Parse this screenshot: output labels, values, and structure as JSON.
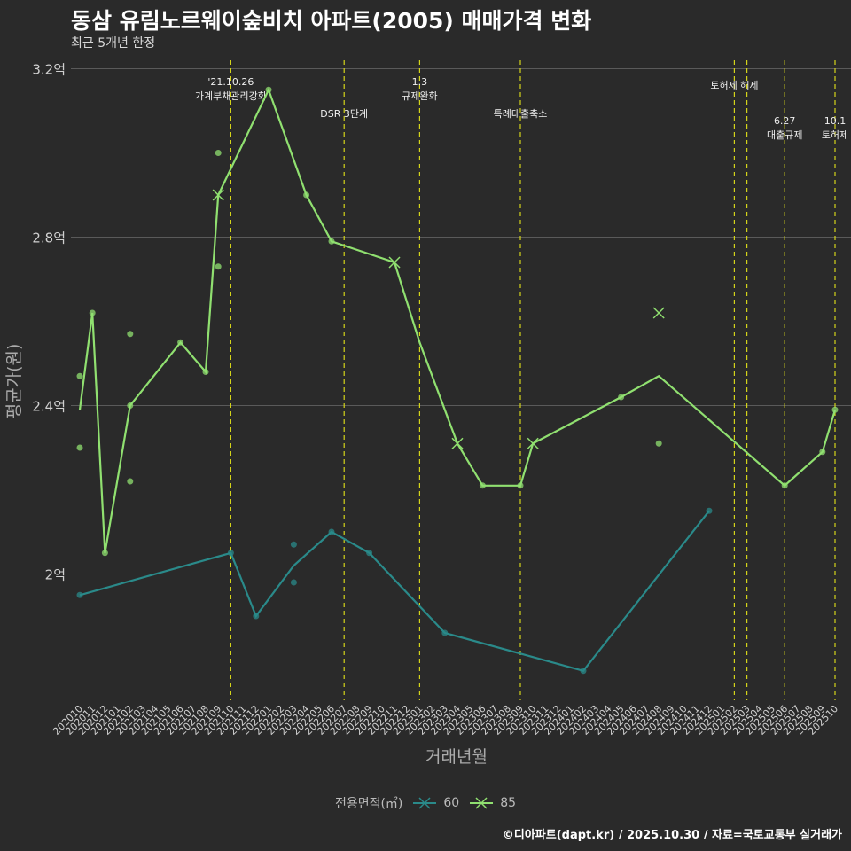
{
  "header": {
    "title": "동삼 유림노르웨이숲비치 아파트(2005) 매매가격 변화",
    "subtitle": "최근 5개년 한정"
  },
  "caption": "©디아파트(dapt.kr) / 2025.10.30 / 자료=국토교통부 실거래가",
  "legend": {
    "title": "전용면적(㎡)",
    "items": [
      {
        "label": "60",
        "color": "#2a8a8a"
      },
      {
        "label": "85",
        "color": "#90e070"
      }
    ]
  },
  "colors": {
    "s60": "#2a8a8a",
    "s85": "#90e070",
    "event": "#d4d41a",
    "grid": "#5a5a5a"
  },
  "chart_data": {
    "type": "line",
    "title": "동삼 유림노르웨이숲비치 아파트(2005) 매매가격 변화",
    "xlabel": "거래년월",
    "ylabel": "평균가(원)",
    "ylim": [
      1.7,
      3.22
    ],
    "yticks": [
      {
        "v": 2.0,
        "label": "2억"
      },
      {
        "v": 2.4,
        "label": "2.4억"
      },
      {
        "v": 2.8,
        "label": "2.8억"
      },
      {
        "v": 3.2,
        "label": "3.2억"
      }
    ],
    "xticks": [
      "202010",
      "202011",
      "202012",
      "202101",
      "202102",
      "202103",
      "202104",
      "202105",
      "202106",
      "202107",
      "202108",
      "202109",
      "202110",
      "202111",
      "202112",
      "202201",
      "202202",
      "202203",
      "202204",
      "202205",
      "202206",
      "202207",
      "202208",
      "202209",
      "202210",
      "202211",
      "202212",
      "202301",
      "202302",
      "202303",
      "202304",
      "202305",
      "202306",
      "202307",
      "202308",
      "202309",
      "202310",
      "202311",
      "202312",
      "202401",
      "202402",
      "202403",
      "202404",
      "202405",
      "202406",
      "202407",
      "202408",
      "202409",
      "202410",
      "202411",
      "202412",
      "202501",
      "202502",
      "202503",
      "202504",
      "202505",
      "202506",
      "202507",
      "202508",
      "202509",
      "202510"
    ],
    "series": [
      {
        "name": "60",
        "line": [
          [
            0,
            1.95
          ],
          [
            12,
            2.05
          ],
          [
            14,
            1.9
          ],
          [
            17,
            2.02
          ],
          [
            20,
            2.1
          ],
          [
            23,
            2.05
          ],
          [
            29,
            1.86
          ],
          [
            40,
            1.77
          ],
          [
            50,
            2.15
          ]
        ],
        "points": [
          [
            0,
            1.95
          ],
          [
            12,
            2.05
          ],
          [
            14,
            1.9
          ],
          [
            17,
            2.07
          ],
          [
            17,
            1.98
          ],
          [
            20,
            2.1
          ],
          [
            23,
            2.05
          ],
          [
            29,
            1.86
          ],
          [
            40,
            1.77
          ],
          [
            50,
            2.15
          ]
        ]
      },
      {
        "name": "85",
        "line": [
          [
            0,
            2.39
          ],
          [
            1,
            2.62
          ],
          [
            2,
            2.05
          ],
          [
            4,
            2.4
          ],
          [
            8,
            2.55
          ],
          [
            10,
            2.48
          ],
          [
            11,
            2.9
          ],
          [
            15,
            3.15
          ],
          [
            18,
            2.9
          ],
          [
            20,
            2.79
          ],
          [
            25,
            2.74
          ],
          [
            27,
            2.55
          ],
          [
            30,
            2.31
          ],
          [
            32,
            2.21
          ],
          [
            35,
            2.21
          ],
          [
            36,
            2.31
          ],
          [
            43,
            2.42
          ],
          [
            46,
            2.47
          ],
          [
            56,
            2.21
          ],
          [
            59,
            2.29
          ],
          [
            60,
            2.39
          ]
        ],
        "points": [
          [
            0,
            2.47
          ],
          [
            0,
            2.3
          ],
          [
            1,
            2.62
          ],
          [
            2,
            2.05
          ],
          [
            4,
            2.4
          ],
          [
            4,
            2.57
          ],
          [
            4,
            2.22
          ],
          [
            8,
            2.55
          ],
          [
            10,
            2.48
          ],
          [
            11,
            3.0
          ],
          [
            11,
            2.73
          ],
          [
            15,
            3.15
          ],
          [
            18,
            2.9
          ],
          [
            20,
            2.79
          ],
          [
            32,
            2.21
          ],
          [
            35,
            2.21
          ],
          [
            43,
            2.42
          ],
          [
            46,
            2.31
          ],
          [
            56,
            2.21
          ],
          [
            59,
            2.29
          ],
          [
            60,
            2.39
          ]
        ],
        "crosses": [
          [
            11,
            2.9
          ],
          [
            25,
            2.74
          ],
          [
            30,
            2.31
          ],
          [
            36,
            2.31
          ],
          [
            46,
            2.62
          ]
        ]
      }
    ],
    "events": [
      {
        "x": 12,
        "lines": [
          "'21.10.26",
          "가계부채관리강화"
        ],
        "row": 0
      },
      {
        "x": 21,
        "lines": [
          "DSR 3단계"
        ],
        "row": 2
      },
      {
        "x": 27,
        "lines": [
          "1.3",
          "규제완화"
        ],
        "row": 0
      },
      {
        "x": 35,
        "lines": [
          "특례대출축소"
        ],
        "row": 2
      },
      {
        "x": 52,
        "lines": [
          "토허제 해제"
        ],
        "row": 1,
        "align": "mid"
      },
      {
        "x": 53,
        "lines": [],
        "row": 1
      },
      {
        "x": 56,
        "lines": [
          "6.27",
          "대출규제"
        ],
        "row": 3
      },
      {
        "x": 60,
        "lines": [
          "10.1",
          "토허제"
        ],
        "row": 3
      }
    ]
  }
}
